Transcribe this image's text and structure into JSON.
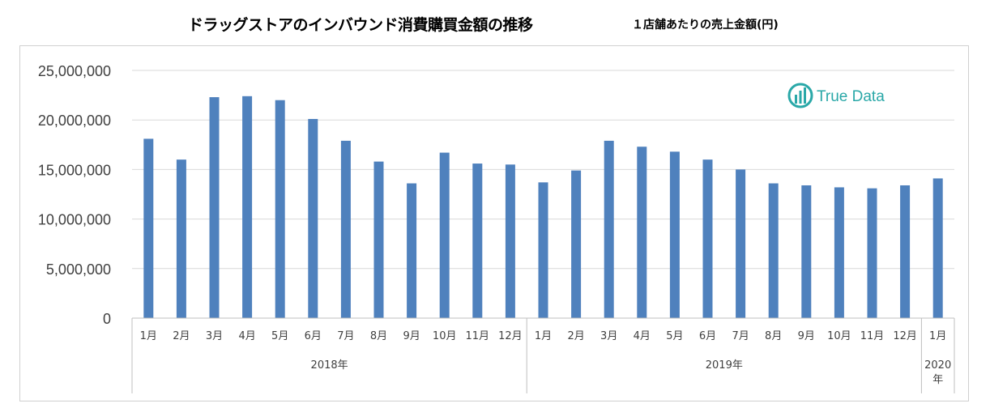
{
  "title": "ドラッグストアのインバウンド消費購買金額の推移",
  "subtitle": "１店舗あたりの売上金額(円)",
  "logo_text": "True Data",
  "colors": {
    "bar": "#4f81bd",
    "grid": "#d9d9d9",
    "axis": "#bfbfbf",
    "logo": "#2aa8a8"
  },
  "chart_data": {
    "type": "bar",
    "title": "ドラッグストアのインバウンド消費購買金額の推移",
    "subtitle": "１店舗あたりの売上金額(円)",
    "ylim": [
      0,
      25000000
    ],
    "y_ticks": [
      "0",
      "5,000,000",
      "10,000,000",
      "15,000,000",
      "20,000,000",
      "25,000,000"
    ],
    "grid": true,
    "categories": [
      "1月",
      "2月",
      "3月",
      "4月",
      "5月",
      "6月",
      "7月",
      "8月",
      "9月",
      "10月",
      "11月",
      "12月",
      "1月",
      "2月",
      "3月",
      "4月",
      "5月",
      "6月",
      "7月",
      "8月",
      "9月",
      "10月",
      "11月",
      "12月",
      "1月"
    ],
    "groups": [
      {
        "label": "2018年",
        "count": 12
      },
      {
        "label": "2019年",
        "count": 12
      },
      {
        "label": "2020\n年",
        "count": 1
      }
    ],
    "values": [
      18100000,
      16000000,
      22300000,
      22400000,
      22000000,
      20100000,
      17900000,
      15800000,
      13600000,
      16700000,
      15600000,
      15500000,
      13700000,
      14900000,
      17900000,
      17300000,
      16800000,
      16000000,
      15000000,
      13600000,
      13400000,
      13200000,
      13100000,
      13400000,
      14100000
    ]
  }
}
